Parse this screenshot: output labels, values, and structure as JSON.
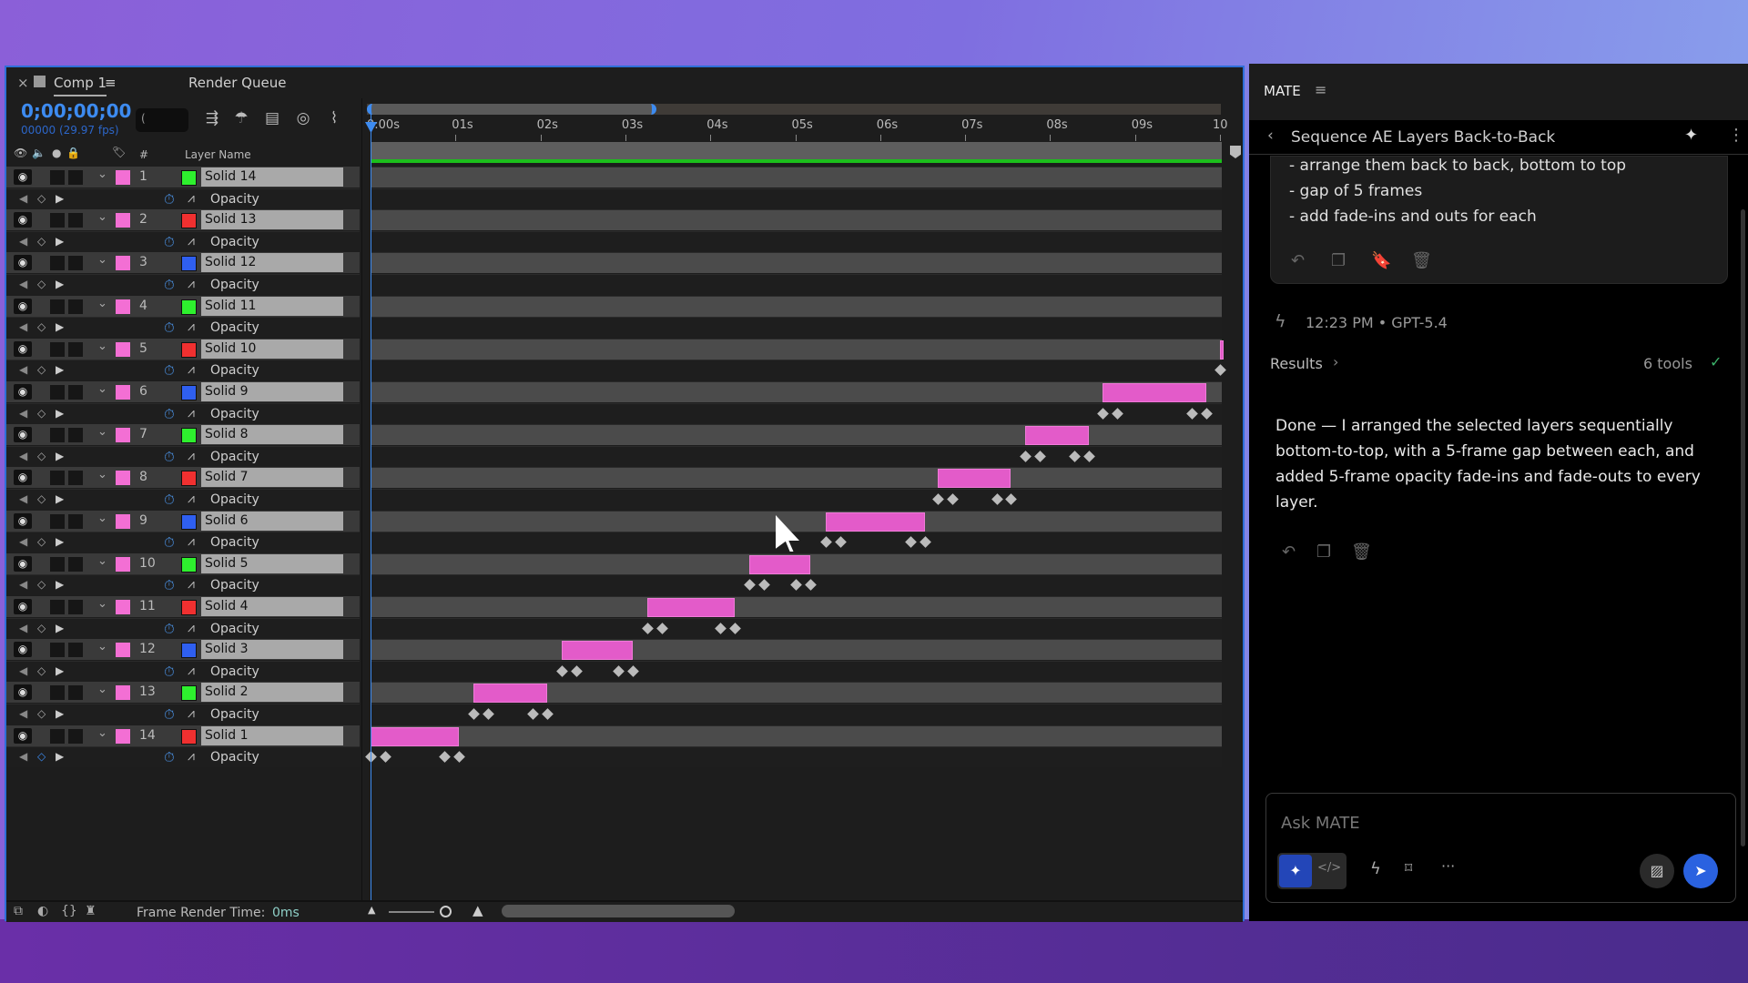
{
  "ae": {
    "tabs": [
      {
        "label": "Comp 1"
      },
      {
        "label": "Render Queue"
      }
    ],
    "timecode": "0;00;00;00",
    "fps": "00000 (29.97 fps)",
    "search_value": "(",
    "columns": {
      "hash": "#",
      "layer_name": "Layer Name"
    },
    "ruler": [
      "0:00s",
      "01s",
      "02s",
      "03s",
      "04s",
      "05s",
      "06s",
      "07s",
      "08s",
      "09s",
      "10"
    ],
    "property_label": "Opacity",
    "layers": [
      {
        "num": "1",
        "name": "Solid 14",
        "color": "#2ef02e",
        "start": null,
        "end": null
      },
      {
        "num": "2",
        "name": "Solid 13",
        "color": "#f03030",
        "start": null,
        "end": null
      },
      {
        "num": "3",
        "name": "Solid 12",
        "color": "#2f5ff0",
        "start": null,
        "end": null
      },
      {
        "num": "4",
        "name": "Solid 11",
        "color": "#2ef02e",
        "start": null,
        "end": null
      },
      {
        "num": "5",
        "name": "Solid 10",
        "color": "#f03030",
        "start": 10.0,
        "end": 10.1
      },
      {
        "num": "6",
        "name": "Solid 9",
        "color": "#2f5ff0",
        "start": 8.62,
        "end": 9.84
      },
      {
        "num": "7",
        "name": "Solid 8",
        "color": "#2ef02e",
        "start": 7.71,
        "end": 8.46
      },
      {
        "num": "8",
        "name": "Solid 7",
        "color": "#f03030",
        "start": 6.68,
        "end": 7.54
      },
      {
        "num": "9",
        "name": "Solid 6",
        "color": "#2f5ff0",
        "start": 5.36,
        "end": 6.53
      },
      {
        "num": "10",
        "name": "Solid 5",
        "color": "#2ef02e",
        "start": 4.46,
        "end": 5.18
      },
      {
        "num": "11",
        "name": "Solid 4",
        "color": "#f03030",
        "start": 3.26,
        "end": 4.29
      },
      {
        "num": "12",
        "name": "Solid 3",
        "color": "#2f5ff0",
        "start": 2.25,
        "end": 3.09
      },
      {
        "num": "13",
        "name": "Solid 2",
        "color": "#2ef02e",
        "start": 1.21,
        "end": 2.08
      },
      {
        "num": "14",
        "name": "Solid 1",
        "color": "#f03030",
        "start": 0.0,
        "end": 1.04
      }
    ],
    "status": {
      "label": "Frame Render Time:",
      "value": "0ms"
    },
    "accent": "#3d8bf0",
    "bar_color": "#e35bc9"
  },
  "mate": {
    "title": "MATE",
    "thread_title": "Sequence AE Layers Back-to-Back",
    "user_lines": [
      "- arrange them back to back, bottom to top",
      "- gap of 5 frames",
      "- add fade-ins and outs for each"
    ],
    "meta": "12:23 PM • GPT-5.4",
    "results_label": "Results",
    "tools_count": "6 tools",
    "response": "Done — I arranged the selected layers sequentially bottom-to-top, with a 5-frame gap between each, and added 5-frame opacity fade-ins and fade-outs to every layer.",
    "input_placeholder": "Ask MATE"
  }
}
